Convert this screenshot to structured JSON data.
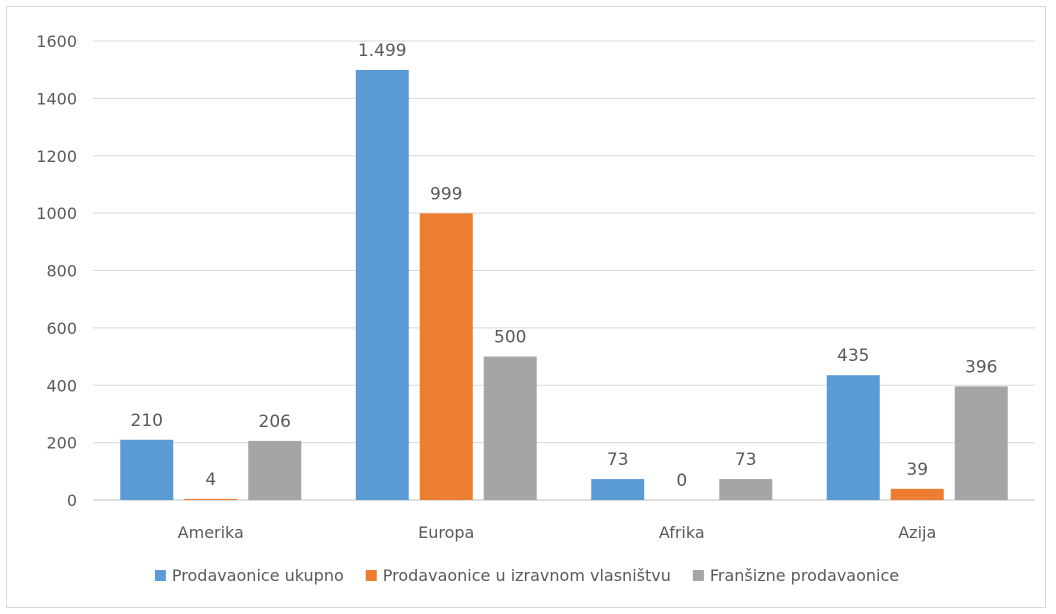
{
  "chart_data": {
    "type": "bar",
    "title": "",
    "xlabel": "",
    "ylabel": "",
    "categories": [
      "Amerika",
      "Europa",
      "Afrika",
      "Azija"
    ],
    "ylim": [
      0,
      1600
    ],
    "yticks": [
      0,
      200,
      400,
      600,
      800,
      1000,
      1200,
      1400,
      1600
    ],
    "grid": true,
    "legend_position": "bottom",
    "series": [
      {
        "name": "Prodavaonice ukupno",
        "color": "#5b9bd5",
        "values": [
          210,
          1499,
          73,
          435
        ],
        "labels": [
          "210",
          "1.499",
          "73",
          "435"
        ]
      },
      {
        "name": "Prodavaonice u izravnom vlasništvu",
        "color": "#ed7d31",
        "values": [
          4,
          999,
          0,
          39
        ],
        "labels": [
          "4",
          "999",
          "0",
          "39"
        ]
      },
      {
        "name": "Franšizne prodavaonice",
        "color": "#a5a5a5",
        "values": [
          206,
          500,
          73,
          396
        ],
        "labels": [
          "206",
          "500",
          "73",
          "396"
        ]
      }
    ]
  }
}
